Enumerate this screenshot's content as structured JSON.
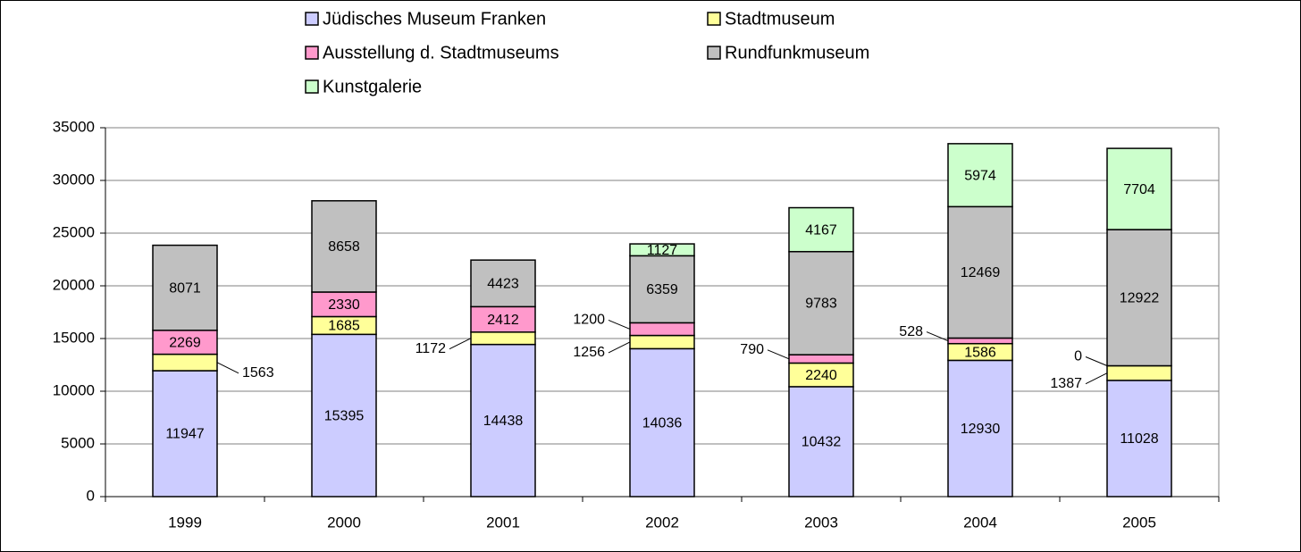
{
  "chart_data": {
    "type": "stacked-bar",
    "categories": [
      "1999",
      "2000",
      "2001",
      "2002",
      "2003",
      "2004",
      "2005"
    ],
    "series": [
      {
        "name": "Jüdisches Museum Franken",
        "color": "#ccccff",
        "values": [
          11947,
          15395,
          14438,
          14036,
          10432,
          12930,
          11028
        ]
      },
      {
        "name": "Stadtmuseum",
        "color": "#ffff99",
        "values": [
          1563,
          1685,
          1172,
          1256,
          2240,
          1586,
          1387
        ]
      },
      {
        "name": "Ausstellung d. Stadtmuseums",
        "color": "#ff99cc",
        "values": [
          2269,
          2330,
          2412,
          1200,
          790,
          528,
          0
        ]
      },
      {
        "name": "Rundfunkmuseum",
        "color": "#c0c0c0",
        "values": [
          8071,
          8658,
          4423,
          6359,
          9783,
          12469,
          12922
        ]
      },
      {
        "name": "Kunstgalerie",
        "color": "#ccffcc",
        "values": [
          null,
          null,
          null,
          1127,
          4167,
          5974,
          7704
        ]
      }
    ],
    "ylim": [
      0,
      35000
    ],
    "yticks": [
      0,
      5000,
      10000,
      15000,
      20000,
      25000,
      30000,
      35000
    ],
    "grid": true,
    "legend": "top"
  }
}
